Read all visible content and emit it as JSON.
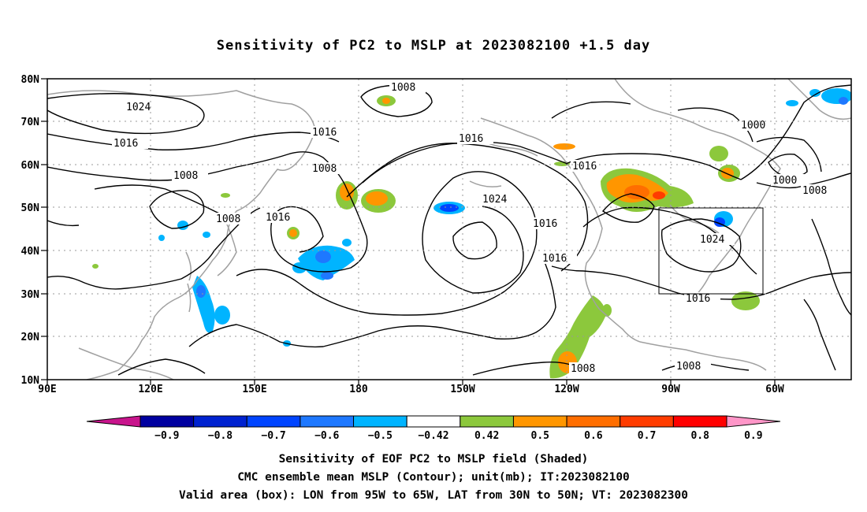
{
  "title": "Sensitivity of PC2 to MSLP at 2023082100 +1.5 day",
  "captions": [
    "Sensitivity of EOF PC2 to MSLP field (Shaded)",
    "CMC ensemble mean MSLP (Contour); unit(mb); IT:2023082100",
    "Valid area (box): LON from 95W to 65W, LAT from 30N to 50N; VT: 2023082300"
  ],
  "map": {
    "lat_ticks": [
      "80N",
      "70N",
      "60N",
      "50N",
      "40N",
      "30N",
      "20N",
      "10N"
    ],
    "lon_ticks": [
      "90E",
      "120E",
      "150E",
      "180",
      "150W",
      "120W",
      "90W",
      "60W"
    ],
    "contour_labels": [
      "1024",
      "1016",
      "1008",
      "1016",
      "1008",
      "1008",
      "1008",
      "1016",
      "1016",
      "1024",
      "1016",
      "1016",
      "1016",
      "1000",
      "1000",
      "1008",
      "1024",
      "1016",
      "1008",
      "1008"
    ],
    "valid_box_labels": {
      "lon": "95W to 65W",
      "lat": "30N to 50N"
    }
  },
  "colorbar": {
    "labels": [
      "-0.9",
      "-0.8",
      "-0.7",
      "-0.6",
      "-0.5",
      "-0.42",
      "0.42",
      "0.5",
      "0.6",
      "0.7",
      "0.8",
      "0.9"
    ],
    "colors": [
      "#0000a0",
      "#0022d0",
      "#0044ff",
      "#1e78ff",
      "#00b4ff",
      "#ffffff",
      "#8cc83c",
      "#ff9600",
      "#ff6e00",
      "#ff3c00",
      "#ff0000"
    ],
    "low_end_color": "#c8148c",
    "high_end_color": "#ff96c8"
  }
}
